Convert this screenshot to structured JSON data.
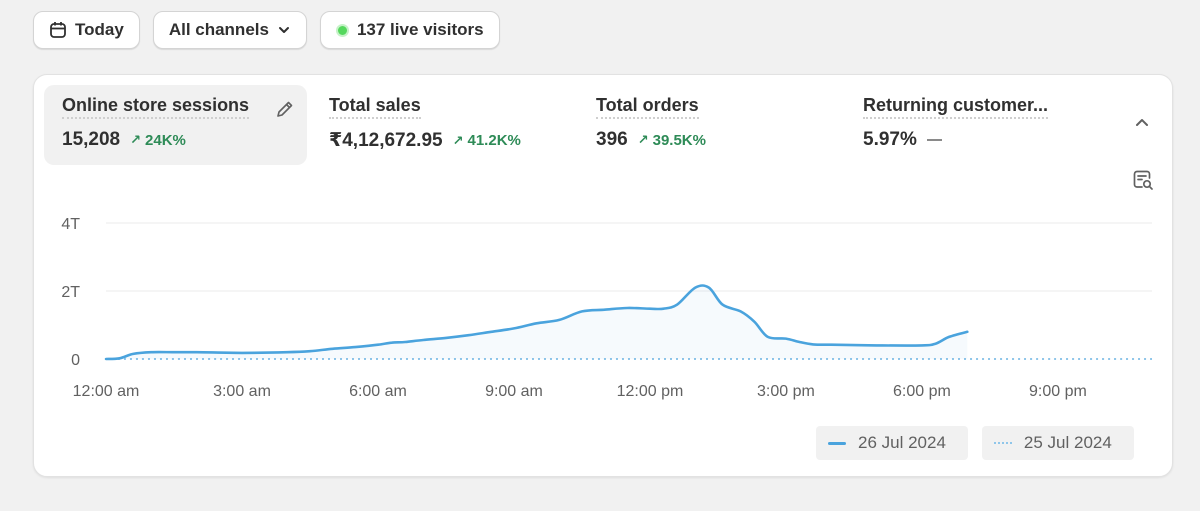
{
  "toolbar": {
    "date_label": "Today",
    "channels_label": "All channels",
    "live_label": "137 live visitors"
  },
  "metrics": [
    {
      "label": "Online store sessions",
      "value": "15,208",
      "change": "24K%",
      "trend": "up"
    },
    {
      "label": "Total sales",
      "value": "₹4,12,672.95",
      "change": "41.2K%",
      "trend": "up"
    },
    {
      "label": "Total orders",
      "value": "396",
      "change": "39.5K%",
      "trend": "up"
    },
    {
      "label": "Returning customer...",
      "value": "5.97%",
      "change": "",
      "trend": "flat"
    }
  ],
  "colors": {
    "accent": "#4aa3dd",
    "previous": "#8fc6ea",
    "positive": "#2e8b57",
    "live": "#55d85d"
  },
  "icons": [
    "calendar-icon",
    "chevron-down-icon",
    "pencil-icon",
    "chevron-up-icon",
    "explore-icon",
    "arrow-up-right-icon"
  ],
  "chart_data": {
    "type": "area",
    "x_ticks": [
      "12:00 am",
      "3:00 am",
      "6:00 am",
      "9:00 am",
      "12:00 pm",
      "3:00 pm",
      "6:00 pm",
      "9:00 pm"
    ],
    "y_ticks": [
      "0",
      "2T",
      "4T"
    ],
    "ylim": [
      0,
      4000
    ],
    "grid": true,
    "legend_placement": "bottom-right",
    "series": [
      {
        "name": "26 Jul 2024",
        "style": "solid",
        "x_hours": [
          0,
          0.3,
          0.6,
          1,
          1.5,
          2,
          3,
          4,
          4.5,
          5,
          5.5,
          6,
          6.3,
          6.6,
          7,
          7.5,
          8,
          8.5,
          9,
          9.5,
          10,
          10.5,
          11,
          11.5,
          12,
          12.3,
          12.6,
          13,
          13.3,
          13.6,
          14,
          14.3,
          14.6,
          15,
          15.3,
          15.6,
          16,
          17,
          18,
          18.3,
          18.6,
          19
        ],
        "values": [
          0,
          20,
          150,
          200,
          200,
          200,
          180,
          200,
          230,
          300,
          350,
          420,
          480,
          500,
          560,
          620,
          700,
          800,
          900,
          1050,
          1150,
          1400,
          1450,
          1500,
          1480,
          1480,
          1600,
          2100,
          2100,
          1600,
          1400,
          1100,
          650,
          600,
          500,
          430,
          420,
          400,
          400,
          450,
          650,
          800
        ]
      },
      {
        "name": "25 Jul 2024",
        "style": "dotted",
        "x_hours": [
          0,
          3,
          6,
          9,
          12,
          15,
          18,
          21,
          23.5
        ],
        "values": [
          0,
          0,
          0,
          0,
          0,
          0,
          0,
          0,
          0
        ]
      }
    ]
  }
}
